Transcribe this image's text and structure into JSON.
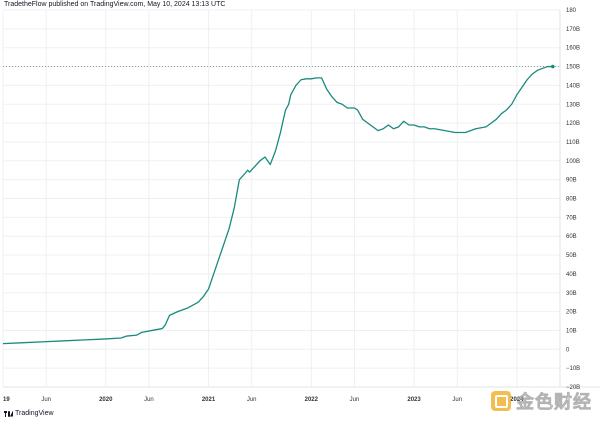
{
  "publisher_line": "TradetheFlow published on TradingView.com, May 10, 2024 13:13 UTC",
  "tradingview_label": "TradingView",
  "watermark_text": "金色财经",
  "colors": {
    "line": "#1b8a7d",
    "grid": "#eef0f3",
    "price_line": "#8a8f99"
  },
  "chart_data": {
    "type": "line",
    "title": "",
    "xlabel": "",
    "ylabel": "",
    "ylim": [
      -20,
      180
    ],
    "y_ticks": [
      "−20B",
      "−10B",
      "0",
      "10B",
      "20B",
      "30B",
      "40B",
      "50B",
      "60B",
      "70B",
      "80B",
      "90B",
      "100B",
      "110B",
      "120B",
      "130B",
      "140B",
      "150B",
      "160B",
      "170B",
      "180"
    ],
    "y_tick_values": [
      -20,
      -10,
      0,
      10,
      20,
      30,
      40,
      50,
      60,
      70,
      80,
      90,
      100,
      110,
      120,
      130,
      140,
      150,
      160,
      170,
      180
    ],
    "current_value": 150,
    "x_ticks": [
      {
        "label": "19",
        "t": 2019.0,
        "major": true
      },
      {
        "label": "Jun",
        "t": 2019.42,
        "major": false
      },
      {
        "label": "2020",
        "t": 2020.0,
        "major": true
      },
      {
        "label": "Jun",
        "t": 2020.42,
        "major": false
      },
      {
        "label": "2021",
        "t": 2021.0,
        "major": true
      },
      {
        "label": "Jun",
        "t": 2021.42,
        "major": false
      },
      {
        "label": "2022",
        "t": 2022.0,
        "major": true
      },
      {
        "label": "Jun",
        "t": 2022.42,
        "major": false
      },
      {
        "label": "2023",
        "t": 2023.0,
        "major": true
      },
      {
        "label": "Jun",
        "t": 2023.42,
        "major": false
      },
      {
        "label": "2024",
        "t": 2024.0,
        "major": true
      }
    ],
    "series": [
      {
        "x": [
          2019.0,
          2019.2,
          2019.4,
          2019.6,
          2019.8,
          2020.0,
          2020.15,
          2020.2,
          2020.3,
          2020.35,
          2020.45,
          2020.55,
          2020.58,
          2020.62,
          2020.7,
          2020.8,
          2020.9,
          2020.95,
          2021.0,
          2021.05,
          2021.1,
          2021.15,
          2021.2,
          2021.25,
          2021.3,
          2021.35,
          2021.38,
          2021.4,
          2021.45,
          2021.5,
          2021.55,
          2021.6,
          2021.65,
          2021.7,
          2021.72,
          2021.75,
          2021.78,
          2021.8,
          2021.85,
          2021.9,
          2021.95,
          2022.0,
          2022.05,
          2022.1,
          2022.15,
          2022.2,
          2022.25,
          2022.3,
          2022.35,
          2022.37,
          2022.4,
          2022.42,
          2022.45,
          2022.5,
          2022.55,
          2022.6,
          2022.65,
          2022.7,
          2022.75,
          2022.8,
          2022.85,
          2022.9,
          2022.95,
          2023.0,
          2023.05,
          2023.1,
          2023.15,
          2023.2,
          2023.3,
          2023.4,
          2023.5,
          2023.6,
          2023.7,
          2023.75,
          2023.8,
          2023.85,
          2023.9,
          2023.95,
          2024.0,
          2024.05,
          2024.1,
          2024.15,
          2024.2,
          2024.25,
          2024.3,
          2024.33,
          2024.35
        ],
        "y": [
          3,
          3.5,
          4,
          4.5,
          5,
          5.5,
          6,
          7,
          7.5,
          9,
          10,
          11,
          13,
          18,
          20,
          22,
          25,
          28,
          32,
          40,
          48,
          56,
          64,
          75,
          90,
          93,
          95,
          94,
          97,
          100,
          102,
          98,
          105,
          115,
          120,
          127,
          130,
          135,
          140,
          143,
          143.5,
          143.5,
          144,
          144,
          138,
          134,
          131,
          130,
          128,
          128,
          128,
          128,
          127,
          122,
          120,
          118,
          116,
          117,
          119,
          117,
          118,
          121,
          119,
          119,
          118,
          118,
          117,
          117,
          116,
          115,
          115,
          117,
          118,
          120,
          122,
          125,
          127,
          130,
          135,
          139,
          143,
          146,
          148,
          149,
          150,
          150,
          150
        ]
      }
    ],
    "legend": "none",
    "grid": true
  }
}
